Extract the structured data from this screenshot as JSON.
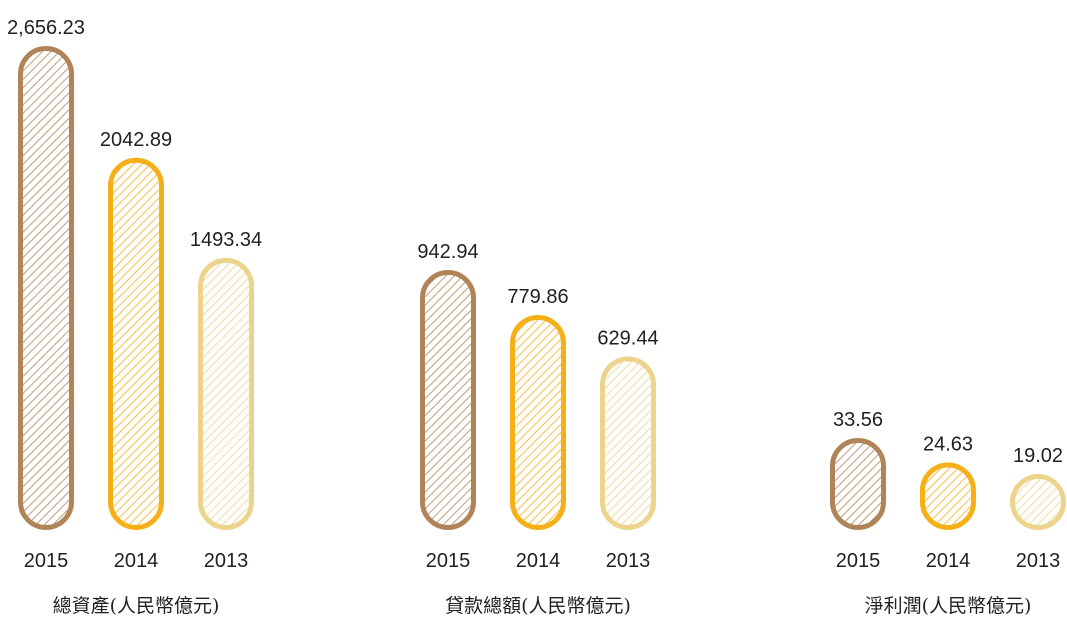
{
  "chart_data": [
    {
      "type": "bar",
      "title": "總資產(人民幣億元)",
      "categories": [
        "2015",
        "2014",
        "2013"
      ],
      "values": [
        2656.23,
        2042.89,
        1493.34
      ],
      "value_labels": [
        "2,656.23",
        "2042.89",
        "1493.34"
      ]
    },
    {
      "type": "bar",
      "title": "貸款總額(人民幣億元)",
      "categories": [
        "2015",
        "2014",
        "2013"
      ],
      "values": [
        942.94,
        779.86,
        629.44
      ],
      "value_labels": [
        "942.94",
        "779.86",
        "629.44"
      ]
    },
    {
      "type": "bar",
      "title": "淨利潤(人民幣億元)",
      "categories": [
        "2015",
        "2014",
        "2013"
      ],
      "values": [
        33.56,
        24.63,
        19.02
      ],
      "value_labels": [
        "33.56",
        "24.63",
        "19.02"
      ]
    }
  ],
  "colors": {
    "2015": "#b08457",
    "2014": "#f5b018",
    "2013": "#ecd48c"
  }
}
